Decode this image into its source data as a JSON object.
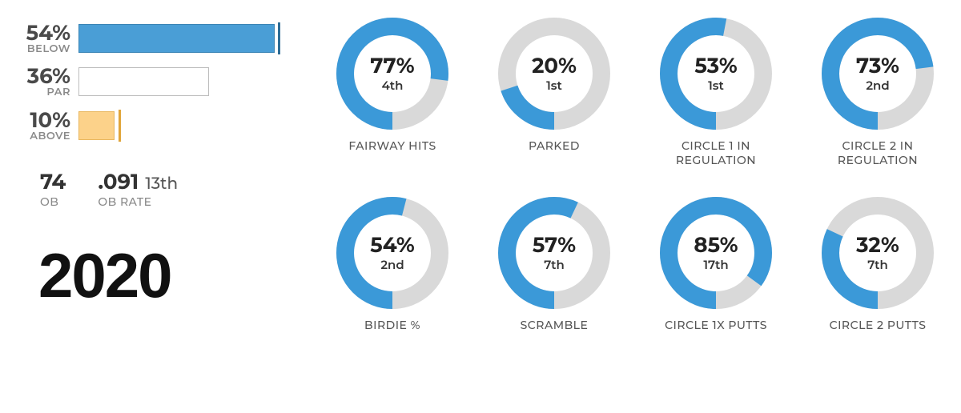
{
  "colors": {
    "bar_blue_fill": "#4a9ed6",
    "bar_blue_border": "#3b85b5",
    "bar_blue_tick": "#2f6d96",
    "bar_white_fill": "#ffffff",
    "bar_white_border": "#bdbdbd",
    "bar_orange_fill": "#fcd28a",
    "bar_orange_border": "#e9b760",
    "bar_orange_tick": "#e0a53a",
    "donut_track": "#d9d9d9",
    "donut_fill": "#3b99d8",
    "text_dark": "#333333"
  },
  "bars": {
    "track_max": 60,
    "below": {
      "pct": "54%",
      "label": "BELOW",
      "value": 54,
      "tick": 55
    },
    "par": {
      "pct": "36%",
      "label": "PAR",
      "value": 36,
      "tick": null
    },
    "above": {
      "pct": "10%",
      "label": "ABOVE",
      "value": 10,
      "tick": 11
    }
  },
  "ob": {
    "count": {
      "value": "74",
      "label": "OB"
    },
    "rate": {
      "value": ".091",
      "rank": "13th",
      "label": "OB RATE"
    }
  },
  "year": "2020",
  "donuts": [
    [
      {
        "pct": 77,
        "pct_label": "77%",
        "rank": "4th",
        "caption": "FAIRWAY HITS"
      },
      {
        "pct": 20,
        "pct_label": "20%",
        "rank": "1st",
        "caption": "PARKED"
      },
      {
        "pct": 53,
        "pct_label": "53%",
        "rank": "1st",
        "caption": "CIRCLE 1 IN\nREGULATION"
      },
      {
        "pct": 73,
        "pct_label": "73%",
        "rank": "2nd",
        "caption": "CIRCLE 2 IN\nREGULATION"
      }
    ],
    [
      {
        "pct": 54,
        "pct_label": "54%",
        "rank": "2nd",
        "caption": "BIRDIE %"
      },
      {
        "pct": 57,
        "pct_label": "57%",
        "rank": "7th",
        "caption": "SCRAMBLE"
      },
      {
        "pct": 85,
        "pct_label": "85%",
        "rank": "17th",
        "caption": "CIRCLE 1X PUTTS"
      },
      {
        "pct": 32,
        "pct_label": "32%",
        "rank": "7th",
        "caption": "CIRCLE 2 PUTTS"
      }
    ]
  ],
  "donut_style": {
    "size": 140,
    "thickness": 22,
    "start_angle_deg": 180
  }
}
